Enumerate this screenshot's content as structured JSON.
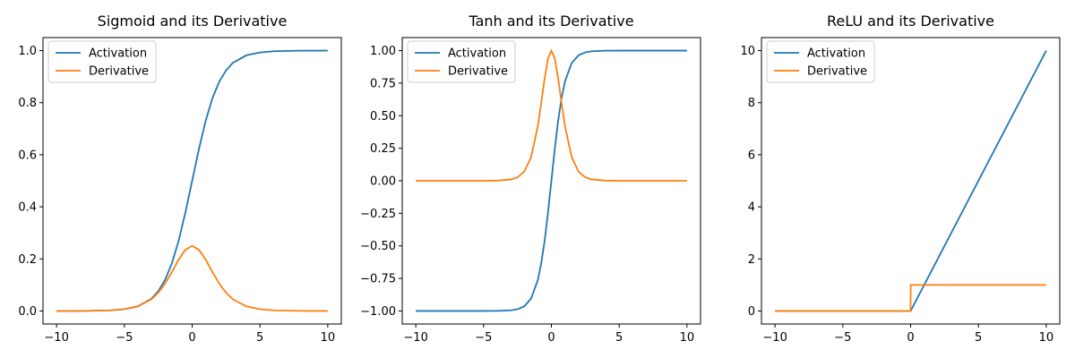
{
  "colors": {
    "activation": "#1f77b4",
    "derivative": "#ff7f0e",
    "axis": "#000000",
    "legend_border": "#cccccc"
  },
  "chart_data": [
    {
      "type": "line",
      "title": "Sigmoid and its Derivative",
      "function": "sigmoid",
      "xlim": [
        -11,
        11
      ],
      "ylim": [
        -0.05,
        1.05
      ],
      "xticks": [
        -10,
        -5,
        0,
        5,
        10
      ],
      "xtick_labels": [
        "−10",
        "−5",
        "0",
        "5",
        "10"
      ],
      "yticks": [
        0.0,
        0.2,
        0.4,
        0.6,
        0.8,
        1.0
      ],
      "ytick_labels": [
        "0.0",
        "0.2",
        "0.4",
        "0.6",
        "0.8",
        "1.0"
      ],
      "legend_position": "upper-left",
      "series": [
        {
          "name": "Activation",
          "x": [
            -10,
            -8,
            -6,
            -5,
            -4,
            -3,
            -2.5,
            -2,
            -1.5,
            -1,
            -0.5,
            0,
            0.5,
            1,
            1.5,
            2,
            2.5,
            3,
            4,
            5,
            6,
            8,
            10
          ],
          "y": [
            5e-05,
            0.0003,
            0.0025,
            0.0067,
            0.018,
            0.047,
            0.076,
            0.119,
            0.182,
            0.269,
            0.378,
            0.5,
            0.622,
            0.731,
            0.818,
            0.881,
            0.924,
            0.953,
            0.982,
            0.993,
            0.9975,
            0.9997,
            0.99995
          ]
        },
        {
          "name": "Derivative",
          "x": [
            -10,
            -8,
            -6,
            -5,
            -4,
            -3,
            -2.5,
            -2,
            -1.5,
            -1,
            -0.5,
            0,
            0.5,
            1,
            1.5,
            2,
            2.5,
            3,
            4,
            5,
            6,
            8,
            10
          ],
          "y": [
            5e-05,
            0.0003,
            0.0025,
            0.0066,
            0.0177,
            0.045,
            0.07,
            0.105,
            0.149,
            0.197,
            0.235,
            0.25,
            0.235,
            0.197,
            0.149,
            0.105,
            0.07,
            0.045,
            0.0177,
            0.0066,
            0.0025,
            0.0003,
            5e-05
          ]
        }
      ]
    },
    {
      "type": "line",
      "title": "Tanh and its Derivative",
      "function": "tanh",
      "xlim": [
        -11,
        11
      ],
      "ylim": [
        -1.1,
        1.1
      ],
      "xticks": [
        -10,
        -5,
        0,
        5,
        10
      ],
      "xtick_labels": [
        "−10",
        "−5",
        "0",
        "5",
        "10"
      ],
      "yticks": [
        -1.0,
        -0.75,
        -0.5,
        -0.25,
        0.0,
        0.25,
        0.5,
        0.75,
        1.0
      ],
      "ytick_labels": [
        "−1.00",
        "−0.75",
        "−0.50",
        "−0.25",
        "0.00",
        "0.25",
        "0.50",
        "0.75",
        "1.00"
      ],
      "legend_position": "upper-left",
      "series": [
        {
          "name": "Activation",
          "x": [
            -10,
            -5,
            -4,
            -3,
            -2.5,
            -2,
            -1.5,
            -1,
            -0.75,
            -0.5,
            -0.25,
            0,
            0.25,
            0.5,
            0.75,
            1,
            1.5,
            2,
            2.5,
            3,
            4,
            5,
            10
          ],
          "y": [
            -1.0,
            -0.9999,
            -0.9993,
            -0.995,
            -0.987,
            -0.964,
            -0.905,
            -0.762,
            -0.635,
            -0.462,
            -0.245,
            0.0,
            0.245,
            0.462,
            0.635,
            0.762,
            0.905,
            0.964,
            0.987,
            0.995,
            0.9993,
            0.9999,
            1.0
          ]
        },
        {
          "name": "Derivative",
          "x": [
            -10,
            -5,
            -4,
            -3,
            -2.5,
            -2,
            -1.5,
            -1,
            -0.75,
            -0.5,
            -0.25,
            0,
            0.25,
            0.5,
            0.75,
            1,
            1.5,
            2,
            2.5,
            3,
            4,
            5,
            10
          ],
          "y": [
            0.0,
            0.0002,
            0.0013,
            0.0099,
            0.0266,
            0.0707,
            0.181,
            0.42,
            0.597,
            0.786,
            0.94,
            1.0,
            0.94,
            0.786,
            0.597,
            0.42,
            0.181,
            0.0707,
            0.0266,
            0.0099,
            0.0013,
            0.0002,
            0.0
          ]
        }
      ]
    },
    {
      "type": "line",
      "title": "ReLU and its Derivative",
      "function": "relu",
      "xlim": [
        -11,
        11
      ],
      "ylim": [
        -0.5,
        10.5
      ],
      "xticks": [
        -10,
        -5,
        0,
        5,
        10
      ],
      "xtick_labels": [
        "−10",
        "−5",
        "0",
        "5",
        "10"
      ],
      "yticks": [
        0,
        2,
        4,
        6,
        8,
        10
      ],
      "ytick_labels": [
        "0",
        "2",
        "4",
        "6",
        "8",
        "10"
      ],
      "legend_position": "upper-left",
      "series": [
        {
          "name": "Activation",
          "x": [
            -10,
            0,
            10
          ],
          "y": [
            0,
            0,
            10
          ]
        },
        {
          "name": "Derivative",
          "x": [
            -10,
            -0.01,
            0.01,
            10
          ],
          "y": [
            0,
            0,
            1,
            1
          ]
        }
      ]
    }
  ]
}
